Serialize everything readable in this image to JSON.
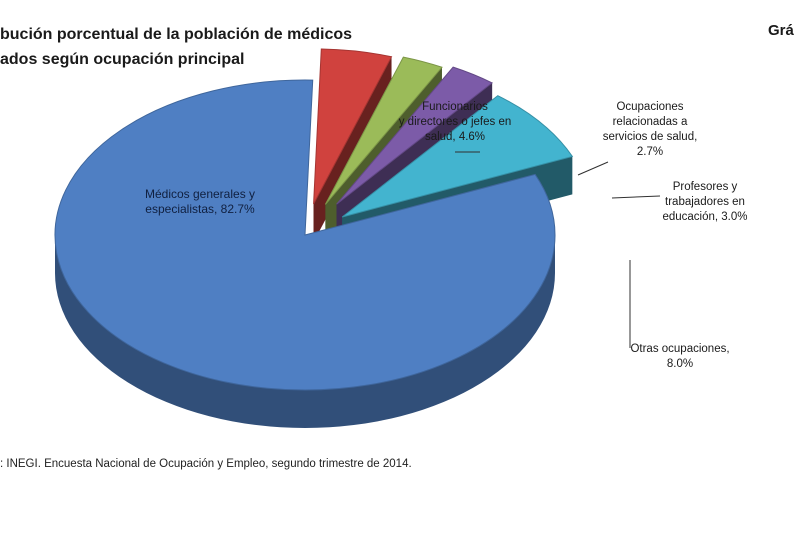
{
  "title_line1": "bución porcentual de la población de médicos",
  "title_line2": "ados según ocupación principal",
  "figure_label": "Grá",
  "source": ": INEGI. Encuesta Nacional de Ocupación y Empleo, segundo trimestre de 2014.",
  "colors": {
    "medicos": "#4f7fc3",
    "funcionarios": "#d0423e",
    "ocupaciones_salud": "#9bbb59",
    "profesores": "#7c5ba8",
    "otras": "#43b4cf",
    "label_line": "#303030"
  },
  "chart_data": {
    "type": "pie",
    "style": "3d-exploded",
    "title": "bución porcentual de la población de médicos ados según ocupación principal",
    "slices": [
      {
        "key": "medicos",
        "label_lines": [
          "Médicos generales y",
          "especialistas, 82.7%"
        ],
        "value": 82.7
      },
      {
        "key": "funcionarios",
        "label_lines": [
          "Funcionarios",
          "y directores o jefes en",
          "salud, 4.6%"
        ],
        "value": 4.6
      },
      {
        "key": "ocupaciones_salud",
        "label_lines": [
          "Ocupaciones",
          "relacionadas a",
          "servicios de salud,",
          "2.7%"
        ],
        "value": 2.7
      },
      {
        "key": "profesores",
        "label_lines": [
          "Profesores y",
          "trabajadores en",
          "educación, 3.0%"
        ],
        "value": 3.0
      },
      {
        "key": "otras",
        "label_lines": [
          "Otras ocupaciones,",
          "8.0%"
        ],
        "value": 8.0
      }
    ]
  }
}
